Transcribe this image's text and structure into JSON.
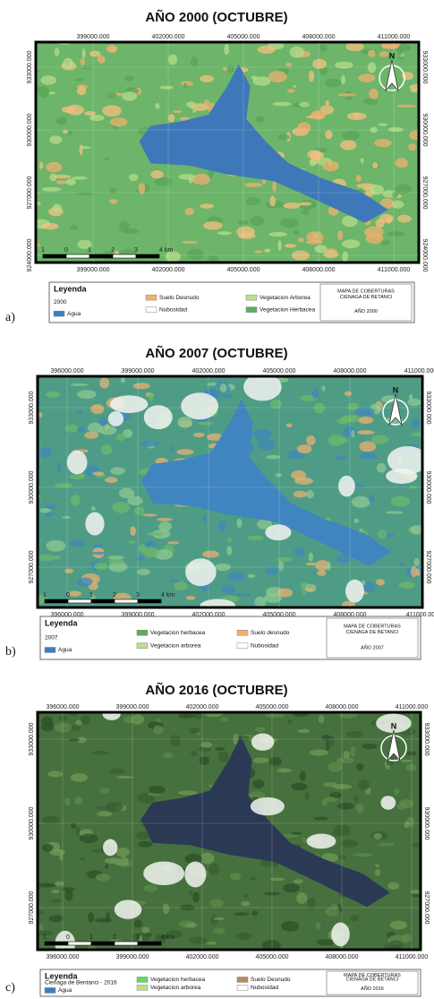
{
  "figure": {
    "panels": [
      {
        "label": "a)",
        "title": "AÑO 2000 (OCTUBRE)",
        "x_ticks_top": [
          "399000.000",
          "402000.000",
          "405000.000",
          "408000.000",
          "411000.000"
        ],
        "x_ticks_bottom": [
          "399000.000",
          "402000.000",
          "405000.000",
          "408000.000",
          "411000.000"
        ],
        "y_ticks_left": [
          "933000.000",
          "930000.000",
          "927000.000",
          "924000.000"
        ],
        "y_ticks_right": [
          "933000.000",
          "930000.000",
          "927000.000",
          "924000.000"
        ],
        "north": "N",
        "scale_labels": [
          "1",
          "0",
          "1",
          "2",
          "3",
          "4 km"
        ],
        "legend": {
          "title": "Leyenda",
          "subtitle": "2000",
          "items": [
            {
              "label": "Agua",
              "color": "#3a7ec0"
            },
            {
              "label": "Suelo Desnudo",
              "color": "#f2b26b"
            },
            {
              "label": "Vegetacion Arborea",
              "color": "#b9e08f"
            },
            {
              "label": "Nubosidad",
              "color": "#ffffff"
            },
            {
              "label": "Vegetacion Herbacea",
              "color": "#5cae5c"
            }
          ]
        },
        "info": [
          "MAPA DE COBERTURAS",
          "CIENAGA DE BETANCI",
          "AÑO 2000"
        ]
      },
      {
        "label": "b)",
        "title": "AÑO 2007 (OCTUBRE)",
        "x_ticks_top": [
          "396000.000",
          "399000.000",
          "402000.000",
          "405000.000",
          "408000.000",
          "411000.000"
        ],
        "x_ticks_bottom": [
          "396000.000",
          "399000.000",
          "402000.000",
          "405000.000",
          "408000.000",
          "411000.00"
        ],
        "y_ticks_left": [
          "933000.000",
          "930000.000",
          "927000.000"
        ],
        "y_ticks_right": [
          "933000.000",
          "930000.000",
          "927000.000"
        ],
        "north": "N",
        "scale_labels": [
          "1",
          "0",
          "1",
          "2",
          "3",
          "4 km"
        ],
        "legend": {
          "title": "Leyenda",
          "subtitle": "2007",
          "items": [
            {
              "label": "Agua",
              "color": "#3a7ec0"
            },
            {
              "label": "Vegetacion herbacea",
              "color": "#5cae5c"
            },
            {
              "label": "Suelo desnudo",
              "color": "#f2b26b"
            },
            {
              "label": "Vegetacion arborea",
              "color": "#b9e08f"
            },
            {
              "label": "Nubosidad",
              "color": "#ffffff"
            }
          ]
        },
        "info": [
          "MAPA DE COBERTURAS",
          "CIENAGA DE BETANCI",
          "AÑO 2007"
        ]
      },
      {
        "label": "c)",
        "title": "AÑO 2016 (OCTUBRE)",
        "x_ticks_top": [
          "396000.000",
          "399000.000",
          "402000.000",
          "405000.000",
          "408000.000",
          "411000.000"
        ],
        "x_ticks_bottom": [
          "396000.000",
          "399000.000",
          "402000.000",
          "405000.000",
          "408000.000",
          "411000.000"
        ],
        "y_ticks_left": [
          "933000.000",
          "930000.000",
          "927000.000"
        ],
        "y_ticks_right": [
          "933000.000",
          "930000.000",
          "927000.000"
        ],
        "north": "N",
        "scale_labels": [
          "1",
          "0",
          "1",
          "2",
          "3",
          "4 km"
        ],
        "legend": {
          "title": "Leyenda",
          "subtitle": "Cienaga de Bentanci - 2016",
          "items": [
            {
              "label": "Agua",
              "color": "#3a7ec0"
            },
            {
              "label": "Vegetacion herbacea",
              "color": "#5be05b"
            },
            {
              "label": "Suelo Desnudo",
              "color": "#b88a5a"
            },
            {
              "label": "Vegetacion arborea",
              "color": "#b9e08f"
            },
            {
              "label": "Nubosidad",
              "color": "#ffffff"
            }
          ]
        },
        "info": [
          "MAPA DE COBERTURAS",
          "CIENAGA DE BETANCI",
          "AÑO 2016"
        ]
      }
    ]
  }
}
